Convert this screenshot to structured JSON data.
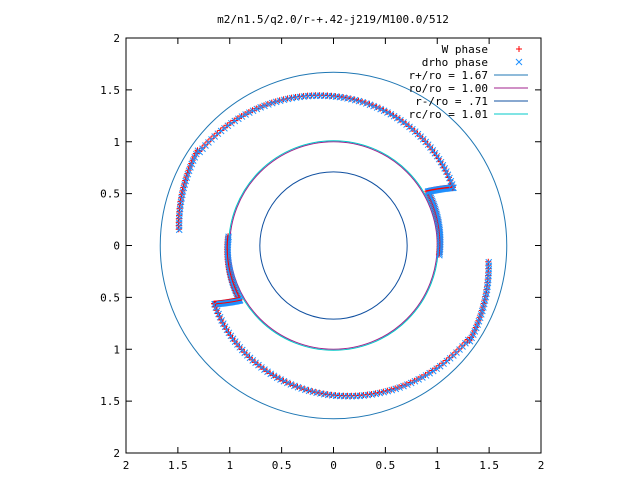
{
  "chart_data": {
    "type": "scatter",
    "title": "m2/n1.5/q2.0/r-+.42-j219/M100.0/512",
    "xlim": [
      -2,
      2
    ],
    "ylim": [
      -2,
      2
    ],
    "x_tick_values": [
      -2,
      -1.5,
      -1,
      -0.5,
      0,
      0.5,
      1,
      1.5,
      2
    ],
    "x_tick_labels": [
      "2",
      "1.5",
      "1",
      "0.5",
      "0",
      "0.5",
      "1",
      "1.5",
      "2"
    ],
    "y_tick_values": [
      2,
      1.5,
      1,
      0.5,
      0,
      -0.5,
      -1,
      -1.5,
      -2
    ],
    "y_tick_labels": [
      "2",
      "1.5",
      "1",
      "0.5",
      "0",
      "0.5",
      "1",
      "1.5",
      "2"
    ],
    "grid": false,
    "legend_position": "top-right",
    "colors": {
      "W phase": "#ff0000",
      "drho phase": "#1e90ff",
      "r+/ro = 1.67": "#1f77b4",
      "ro/ro = 1.00": "#a0208c",
      "r-/ro = .71": "#1050a0",
      "rc/ro = 1.01": "#00c8c8"
    },
    "legend": [
      {
        "label": "W phase",
        "kind": "point-plus",
        "color": "#ff0000"
      },
      {
        "label": "drho phase",
        "kind": "point-x",
        "color": "#1e90ff"
      },
      {
        "label": "r+/ro = 1.67",
        "kind": "line",
        "color": "#1f77b4"
      },
      {
        "label": "ro/ro = 1.00",
        "kind": "line",
        "color": "#a0208c"
      },
      {
        "label": "r-/ro = .71",
        "kind": "line",
        "color": "#1050a0"
      },
      {
        "label": "rc/ro = 1.01",
        "kind": "line",
        "color": "#00c8c8"
      }
    ],
    "circles": [
      {
        "name": "r+/ro = 1.67",
        "r": 1.67,
        "color": "#1f77b4"
      },
      {
        "name": "ro/ro = 1.00",
        "r": 1.0,
        "color": "#a0208c"
      },
      {
        "name": "r-/ro = .71",
        "r": 0.71,
        "color": "#1050a0"
      },
      {
        "name": "rc/ro = 1.01",
        "r": 1.01,
        "color": "#00c8c8"
      }
    ],
    "spiral_arms": [
      {
        "arm": 1,
        "segments": [
          {
            "r": [
              1.02,
              1.045
            ],
            "theta_deg": [
              -5,
              30
            ]
          },
          {
            "r": [
              1.05,
              1.28
            ],
            "theta_deg": [
              30,
              26
            ]
          },
          {
            "r": [
              1.28,
              1.58
            ],
            "theta_deg": [
              26,
              145
            ]
          },
          {
            "r": [
              1.6,
              1.5
            ],
            "theta_deg": [
              145,
              174
            ]
          }
        ]
      },
      {
        "arm": 2,
        "segments": [
          {
            "r": [
              1.02,
              1.045
            ],
            "theta_deg": [
              175,
              210
            ]
          },
          {
            "r": [
              1.05,
              1.28
            ],
            "theta_deg": [
              210,
              206
            ]
          },
          {
            "r": [
              1.28,
              1.58
            ],
            "theta_deg": [
              206,
              325
            ]
          },
          {
            "r": [
              1.6,
              1.5
            ],
            "theta_deg": [
              325,
              354
            ]
          }
        ]
      }
    ]
  }
}
